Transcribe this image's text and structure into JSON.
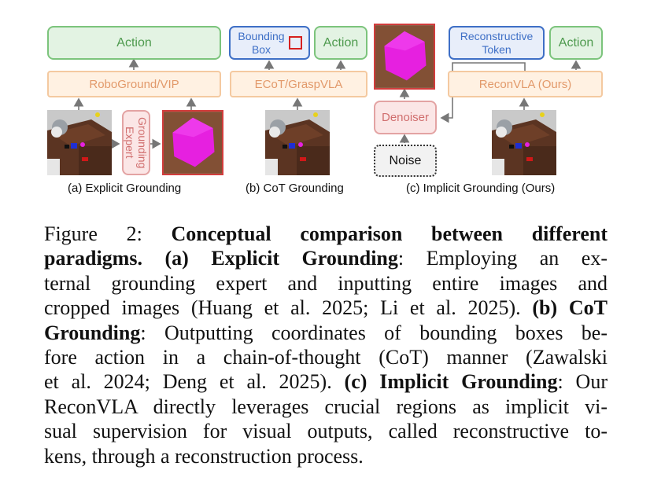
{
  "figure": {
    "panel_a": {
      "action_label": "Action",
      "model_label": "RoboGround/VIP",
      "expert_label": "Grounding Expert",
      "subcaption": "(a) Explicit Grounding"
    },
    "panel_b": {
      "bbox_label": "Bounding Box",
      "action_label": "Action",
      "model_label": "ECoT/GraspVLA",
      "subcaption": "(b) CoT Grounding"
    },
    "panel_c": {
      "token_label": "Reconstructive Token",
      "action_label": "Action",
      "model_label": "ReconVLA (Ours)",
      "denoiser_label": "Denoiser",
      "noise_label": "Noise",
      "subcaption": "(c) Implicit Grounding (Ours)"
    },
    "colors": {
      "action_green": "#7cc47c",
      "model_orange": "#f4c9a0",
      "token_blue": "#3e6fc6",
      "expert_pink": "#e3a3a3",
      "crop_magenta": "#e620e0",
      "crop_border_red": "#d23c3c"
    }
  },
  "caption": {
    "lines": [
      [
        "Figure 2: ",
        "<b>Conceptual comparison between different</b>"
      ],
      [
        "<b>paradigms. (a) Explicit Grounding</b>",
        ": Employing an ex-"
      ],
      [
        "ternal grounding expert and inputting entire images and"
      ],
      [
        "cropped images (Huang et al. 2025; Li et al. 2025). ",
        "<b>(b) CoT</b>"
      ],
      [
        "<b>Grounding</b>",
        ": Outputting coordinates of bounding boxes be-"
      ],
      [
        "fore action in a chain-of-thought (CoT) manner (Zawalski"
      ],
      [
        "et al. 2024; Deng et al. 2025). ",
        "<b>(c) Implicit Grounding</b>",
        ": Our"
      ],
      [
        "ReconVLA directly leverages crucial regions as implicit vi-"
      ],
      [
        "sual supervision for visual outputs, called reconstructive to-"
      ],
      [
        "kens, through a reconstruction process."
      ]
    ],
    "text": {
      "l1a": "Figure 2: ",
      "l1b": "Conceptual comparison between different",
      "l2a": "paradigms. (a) Explicit Grounding",
      "l2b": ": Employing an ex-",
      "l3": "ternal grounding expert and inputting entire images and",
      "l4a": "cropped images (Huang et al. 2025; Li et al. 2025). ",
      "l4b": "(b) CoT",
      "l5a": "Grounding",
      "l5b": ": Outputting coordinates of bounding boxes be-",
      "l6": "fore action in a chain-of-thought (CoT) manner (Zawalski",
      "l7a": "et al. 2024; Deng et al. 2025). ",
      "l7b": "(c) Implicit Grounding",
      "l7c": ": Our",
      "l8": "ReconVLA directly leverages crucial regions as implicit vi-",
      "l9": "sual supervision for visual outputs, called reconstructive to-",
      "l10": "kens, through a reconstruction process."
    }
  }
}
